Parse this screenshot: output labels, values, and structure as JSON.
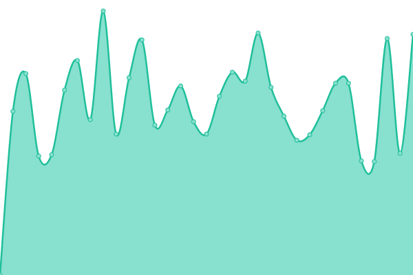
{
  "chart_data": {
    "type": "area",
    "values": [
      0,
      238,
      293,
      173,
      175,
      269,
      312,
      226,
      384,
      205,
      287,
      342,
      218,
      240,
      275,
      223,
      205,
      260,
      295,
      282,
      352,
      273,
      231,
      196,
      204,
      239,
      279,
      279,
      166,
      165,
      344,
      177,
      350
    ],
    "ylim": [
      0,
      400
    ],
    "color": "#1fbf9a",
    "fill": "#88e0cf",
    "markers": true
  }
}
